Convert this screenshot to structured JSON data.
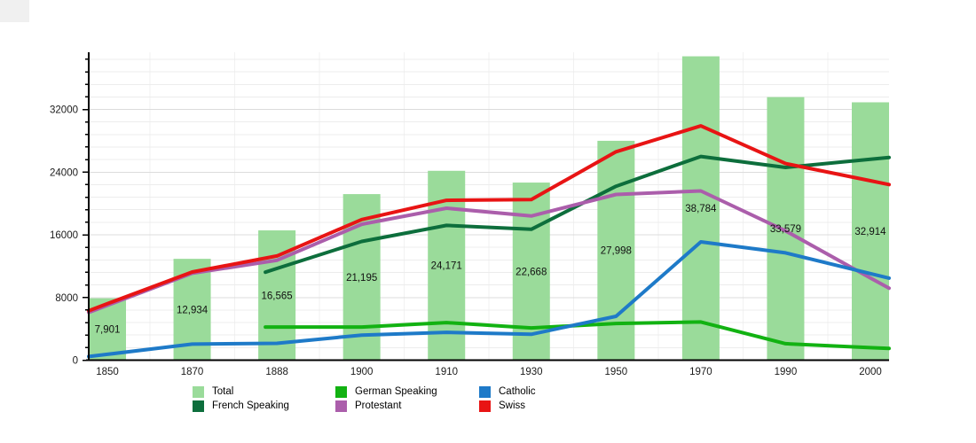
{
  "chart_data": {
    "type": "bar",
    "subtype": "bar-and-line-combo",
    "title": "",
    "xlabel": "",
    "ylabel": "",
    "categories": [
      "1850",
      "1870",
      "1888",
      "1900",
      "1910",
      "1930",
      "1950",
      "1970",
      "1990",
      "2000"
    ],
    "ylim": [
      0,
      39300
    ],
    "yticks_major": [
      0,
      8000,
      16000,
      24000,
      32000
    ],
    "ytick_minor_step": 1600,
    "grid": true,
    "legend_position": "bottom",
    "bar_series": {
      "name": "Total",
      "color": "#9adb9a",
      "values": [
        7901,
        12934,
        16565,
        21195,
        24171,
        22668,
        27998,
        38784,
        33579,
        32914
      ],
      "labels": [
        "7,901",
        "12,934",
        "16,565",
        "21,195",
        "24,171",
        "22,668",
        "27,998",
        "38,784",
        "33,579",
        "32,914"
      ]
    },
    "line_series": [
      {
        "name": "French Speaking",
        "color": "#0d6e3c",
        "values": [
          null,
          null,
          11700,
          15150,
          17200,
          16700,
          22200,
          26000,
          24600,
          25650
        ]
      },
      {
        "name": "German Speaking",
        "color": "#12b212",
        "values": [
          null,
          null,
          4230,
          4230,
          4790,
          4120,
          4680,
          4870,
          2100,
          1600
        ]
      },
      {
        "name": "Protestant",
        "color": "#ab5eab",
        "values": [
          7000,
          11100,
          12750,
          17350,
          19400,
          18400,
          21150,
          21600,
          16500,
          10500
        ]
      },
      {
        "name": "Catholic",
        "color": "#1e7ac8",
        "values": [
          750,
          2050,
          2150,
          3200,
          3550,
          3300,
          5600,
          15100,
          13700,
          11050
        ]
      },
      {
        "name": "Swiss",
        "color": "#e81414",
        "values": [
          7200,
          11250,
          13300,
          17950,
          20400,
          20500,
          26600,
          29900,
          25100,
          22900
        ]
      }
    ],
    "legend": {
      "items": [
        {
          "label": "Total",
          "color": "#9adb9a"
        },
        {
          "label": "German Speaking",
          "color": "#12b212"
        },
        {
          "label": "Catholic",
          "color": "#1e7ac8"
        },
        {
          "label": "French Speaking",
          "color": "#0d6e3c"
        },
        {
          "label": "Protestant",
          "color": "#ab5eab"
        },
        {
          "label": "Swiss",
          "color": "#e81414"
        }
      ]
    },
    "colors": {
      "axis": "#000000",
      "tick_text": "#1a1a1a",
      "bar_label_text": "#111111",
      "grid_major": "#dcdcdc",
      "grid_minor": "#ececec",
      "grid_vertical": "#f1f1f1",
      "background": "#ffffff"
    }
  }
}
